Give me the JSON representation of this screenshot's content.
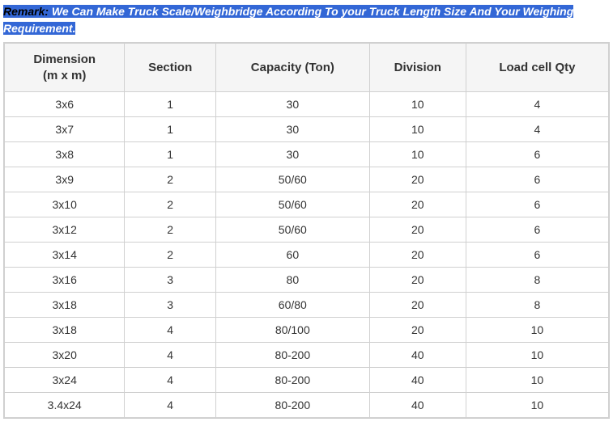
{
  "remark": {
    "label": "Remark: ",
    "text": "We Can Make Truck Scale/Weighbridge According To your Truck Length Size And Your Weighing Requirement."
  },
  "table": {
    "columns": [
      "Dimension (m x m)",
      "Section",
      "Capacity (Ton)",
      "Division",
      "Load cell Qty"
    ],
    "rows": [
      [
        "3x6",
        "1",
        "30",
        "10",
        "4"
      ],
      [
        "3x7",
        "1",
        "30",
        "10",
        "4"
      ],
      [
        "3x8",
        "1",
        "30",
        "10",
        "6"
      ],
      [
        "3x9",
        "2",
        "50/60",
        "20",
        "6"
      ],
      [
        "3x10",
        "2",
        "50/60",
        "20",
        "6"
      ],
      [
        "3x12",
        "2",
        "50/60",
        "20",
        "6"
      ],
      [
        "3x14",
        "2",
        "60",
        "20",
        "6"
      ],
      [
        "3x16",
        "3",
        "80",
        "20",
        "8"
      ],
      [
        "3x18",
        "3",
        "60/80",
        "20",
        "8"
      ],
      [
        "3x18",
        "4",
        "80/100",
        "20",
        "10"
      ],
      [
        "3x20",
        "4",
        "80-200",
        "40",
        "10"
      ],
      [
        "3x24",
        "4",
        "80-200",
        "40",
        "10"
      ],
      [
        "3.4x24",
        "4",
        "80-200",
        "40",
        "10"
      ]
    ],
    "header_bg": "#f5f5f5",
    "border_color": "#d0d0d0",
    "text_color": "#333333",
    "header_fontsize": 15,
    "cell_fontsize": 14,
    "highlight_bg": "#3367d6",
    "highlight_text": "#ffffff"
  }
}
